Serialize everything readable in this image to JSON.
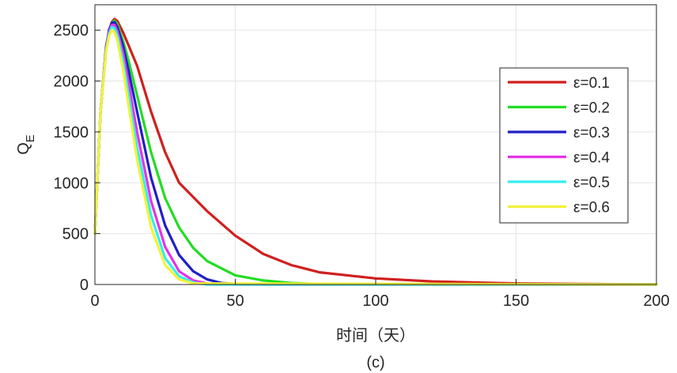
{
  "chart_data": {
    "type": "line",
    "caption": "(c)",
    "xlabel": "时间（天）",
    "ylabel": "Q",
    "ylabel_subscript": "E",
    "xlim": [
      0,
      200
    ],
    "ylim": [
      0,
      2750
    ],
    "xticks": [
      0,
      50,
      100,
      150,
      200
    ],
    "yticks": [
      0,
      500,
      1000,
      1500,
      2000,
      2500
    ],
    "grid": true,
    "legend_position": "right",
    "series": [
      {
        "name": "ε=0.1",
        "color": "#d11f1f",
        "x": [
          0,
          2,
          4,
          6,
          7,
          8,
          10,
          12,
          15,
          20,
          25,
          30,
          40,
          50,
          60,
          70,
          80,
          100,
          120,
          150,
          200
        ],
        "y": [
          500,
          1700,
          2350,
          2580,
          2610,
          2590,
          2480,
          2350,
          2150,
          1700,
          1300,
          1000,
          720,
          480,
          300,
          190,
          120,
          60,
          30,
          10,
          0
        ]
      },
      {
        "name": "ε=0.2",
        "color": "#22dd22",
        "x": [
          0,
          2,
          4,
          6,
          7,
          8,
          10,
          12,
          15,
          20,
          25,
          30,
          35,
          40,
          50,
          60,
          70,
          80,
          100,
          200
        ],
        "y": [
          500,
          1700,
          2340,
          2570,
          2595,
          2560,
          2400,
          2200,
          1860,
          1300,
          850,
          560,
          360,
          230,
          90,
          40,
          15,
          5,
          0,
          0
        ]
      },
      {
        "name": "ε=0.3",
        "color": "#1f1fc8",
        "x": [
          0,
          2,
          4,
          5,
          6,
          7,
          8,
          10,
          12,
          15,
          20,
          25,
          30,
          35,
          40,
          45,
          50,
          60,
          200
        ],
        "y": [
          500,
          1700,
          2330,
          2500,
          2570,
          2580,
          2530,
          2350,
          2100,
          1700,
          1050,
          580,
          290,
          130,
          50,
          15,
          5,
          0,
          0
        ]
      },
      {
        "name": "ε=0.4",
        "color": "#e632e6",
        "x": [
          0,
          2,
          4,
          5,
          6,
          7,
          8,
          10,
          12,
          15,
          20,
          25,
          30,
          35,
          40,
          50,
          200
        ],
        "y": [
          500,
          1700,
          2320,
          2480,
          2550,
          2550,
          2490,
          2280,
          1980,
          1500,
          820,
          370,
          130,
          40,
          10,
          0,
          0
        ]
      },
      {
        "name": "ε=0.5",
        "color": "#33eeee",
        "x": [
          0,
          2,
          4,
          5,
          6,
          7,
          8,
          10,
          12,
          15,
          20,
          25,
          30,
          35,
          40,
          200
        ],
        "y": [
          500,
          1700,
          2310,
          2460,
          2530,
          2520,
          2450,
          2200,
          1870,
          1350,
          680,
          260,
          80,
          20,
          0,
          0
        ]
      },
      {
        "name": "ε=0.6",
        "color": "#f2f23a",
        "x": [
          0,
          2,
          4,
          5,
          6,
          7,
          8,
          10,
          12,
          15,
          20,
          25,
          30,
          35,
          200
        ],
        "y": [
          500,
          1700,
          2300,
          2440,
          2500,
          2480,
          2400,
          2120,
          1760,
          1230,
          560,
          190,
          50,
          10,
          0
        ]
      }
    ]
  }
}
